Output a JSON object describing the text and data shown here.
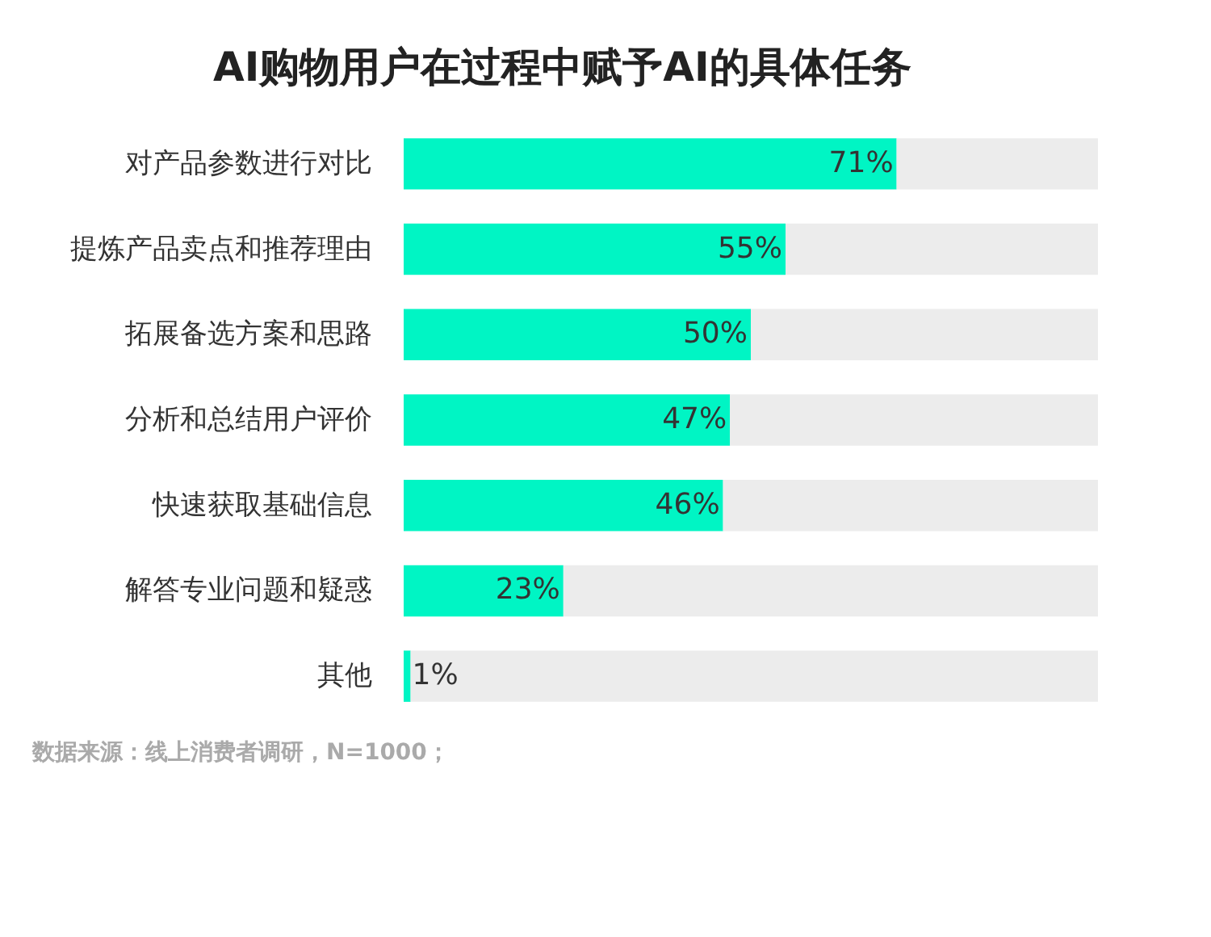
{
  "chart_data": {
    "type": "bar",
    "orientation": "horizontal",
    "stacked": true,
    "title": "AI购物用户在过程中赋予AI的具体任务",
    "categories": [
      "对产品参数进行对比",
      "提炼产品卖点和推荐理由",
      "拓展备选方案和思路",
      "分析和总结用户评价",
      "快速获取基础信息",
      "解答专业问题和疑惑",
      "其他"
    ],
    "series": [
      {
        "color": "#00f5c4",
        "values": [
          71,
          55,
          50,
          47,
          46,
          23,
          1
        ],
        "value_labels": [
          "71%",
          "55%",
          "50%",
          "47%",
          "46%",
          "23%",
          "1%"
        ]
      },
      {
        "color": "#ececec",
        "values": [
          29,
          45,
          50,
          53,
          54,
          77,
          99
        ]
      }
    ],
    "xlim": [
      0,
      100
    ],
    "grid": false,
    "tick_labels": "y",
    "annotations": [
      "数据来源：线上消费者调研，N=1000；"
    ]
  }
}
